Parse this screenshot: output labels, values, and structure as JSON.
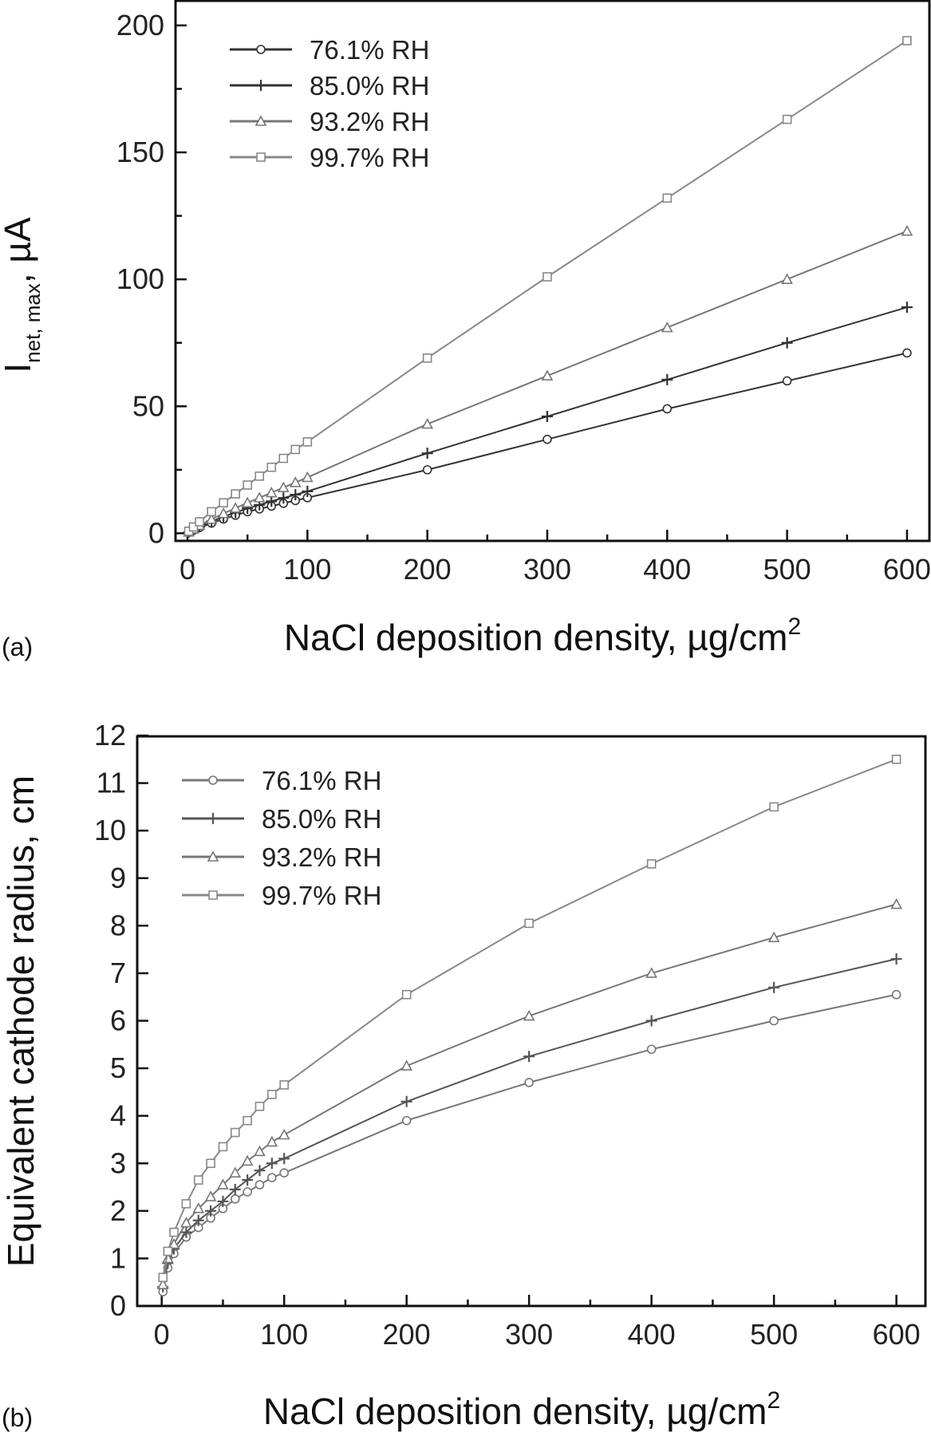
{
  "chart_data": [
    {
      "type": "line",
      "panel_label": "(a)",
      "xlabel": "NaCl deposition density, µg/cm",
      "xlabel_sup": "2",
      "ylabel_main": "I",
      "ylabel_sub": "net, max",
      "ylabel_rest": ", µA",
      "xlim": [
        -10,
        620
      ],
      "ylim": [
        -3,
        210
      ],
      "xticks": [
        0,
        100,
        200,
        300,
        400,
        500,
        600
      ],
      "yticks": [
        0,
        50,
        100,
        150,
        200
      ],
      "grid": false,
      "legend_position": "top-left",
      "x": [
        1,
        5,
        10,
        20,
        30,
        40,
        50,
        60,
        70,
        80,
        90,
        100,
        200,
        300,
        400,
        500,
        600
      ],
      "series": [
        {
          "name": "76.1% RH",
          "marker": "circle",
          "color": "#333333",
          "values": [
            0.3,
            1.2,
            2.2,
            4.0,
            5.6,
            7.1,
            8.5,
            9.6,
            10.7,
            11.8,
            12.9,
            14.0,
            25.0,
            37.0,
            49.0,
            60.0,
            71.0
          ]
        },
        {
          "name": "85.0% RH",
          "marker": "plus",
          "color": "#333333",
          "values": [
            0.4,
            1.4,
            2.6,
            4.7,
            6.5,
            8.2,
            9.8,
            11.2,
            12.6,
            13.9,
            15.2,
            16.5,
            31.5,
            46.0,
            60.5,
            75.0,
            89.0
          ]
        },
        {
          "name": "93.2% RH",
          "marker": "triangle",
          "color": "#777777",
          "values": [
            0.5,
            1.7,
            3.1,
            5.5,
            7.8,
            9.9,
            12.0,
            14.0,
            16.0,
            18.0,
            20.0,
            22.0,
            43.0,
            62.0,
            81.0,
            100.0,
            119.0
          ]
        },
        {
          "name": "99.7% RH",
          "marker": "square",
          "color": "#888888",
          "values": [
            0.8,
            2.5,
            4.5,
            8.5,
            12.0,
            15.5,
            19.0,
            22.5,
            26.0,
            29.5,
            33.0,
            36.0,
            69.0,
            101.0,
            132.0,
            163.0,
            194.0
          ]
        }
      ]
    },
    {
      "type": "line",
      "panel_label": "(b)",
      "xlabel": "NaCl deposition density, µg/cm",
      "xlabel_sup": "2",
      "ylabel": "Equivalent cathode radius, cm",
      "xlim": [
        -20,
        625
      ],
      "ylim": [
        0,
        12
      ],
      "xticks": [
        0,
        100,
        200,
        300,
        400,
        500,
        600
      ],
      "yticks": [
        0,
        1,
        2,
        3,
        4,
        5,
        6,
        7,
        8,
        9,
        10,
        11,
        12
      ],
      "grid": false,
      "legend_position": "top-left",
      "x": [
        1,
        5,
        10,
        20,
        30,
        40,
        50,
        60,
        70,
        80,
        90,
        100,
        200,
        300,
        400,
        500,
        600
      ],
      "series": [
        {
          "name": "76.1% RH",
          "marker": "circle",
          "color": "#777777",
          "values": [
            0.3,
            0.8,
            1.1,
            1.45,
            1.65,
            1.85,
            2.05,
            2.25,
            2.4,
            2.55,
            2.7,
            2.8,
            3.9,
            4.7,
            5.4,
            6.0,
            6.55
          ]
        },
        {
          "name": "85.0% RH",
          "marker": "plus",
          "color": "#555555",
          "values": [
            0.4,
            0.9,
            1.2,
            1.55,
            1.8,
            2.0,
            2.2,
            2.45,
            2.65,
            2.85,
            3.0,
            3.1,
            4.3,
            5.25,
            6.0,
            6.7,
            7.3
          ]
        },
        {
          "name": "93.2% RH",
          "marker": "triangle",
          "color": "#777777",
          "values": [
            0.45,
            1.0,
            1.3,
            1.75,
            2.05,
            2.3,
            2.55,
            2.8,
            3.05,
            3.25,
            3.45,
            3.6,
            5.05,
            6.1,
            7.0,
            7.75,
            8.45
          ]
        },
        {
          "name": "99.7% RH",
          "marker": "square",
          "color": "#888888",
          "values": [
            0.6,
            1.15,
            1.55,
            2.15,
            2.65,
            3.0,
            3.35,
            3.65,
            3.9,
            4.2,
            4.45,
            4.65,
            6.55,
            8.05,
            9.3,
            10.5,
            11.5
          ]
        }
      ]
    }
  ]
}
